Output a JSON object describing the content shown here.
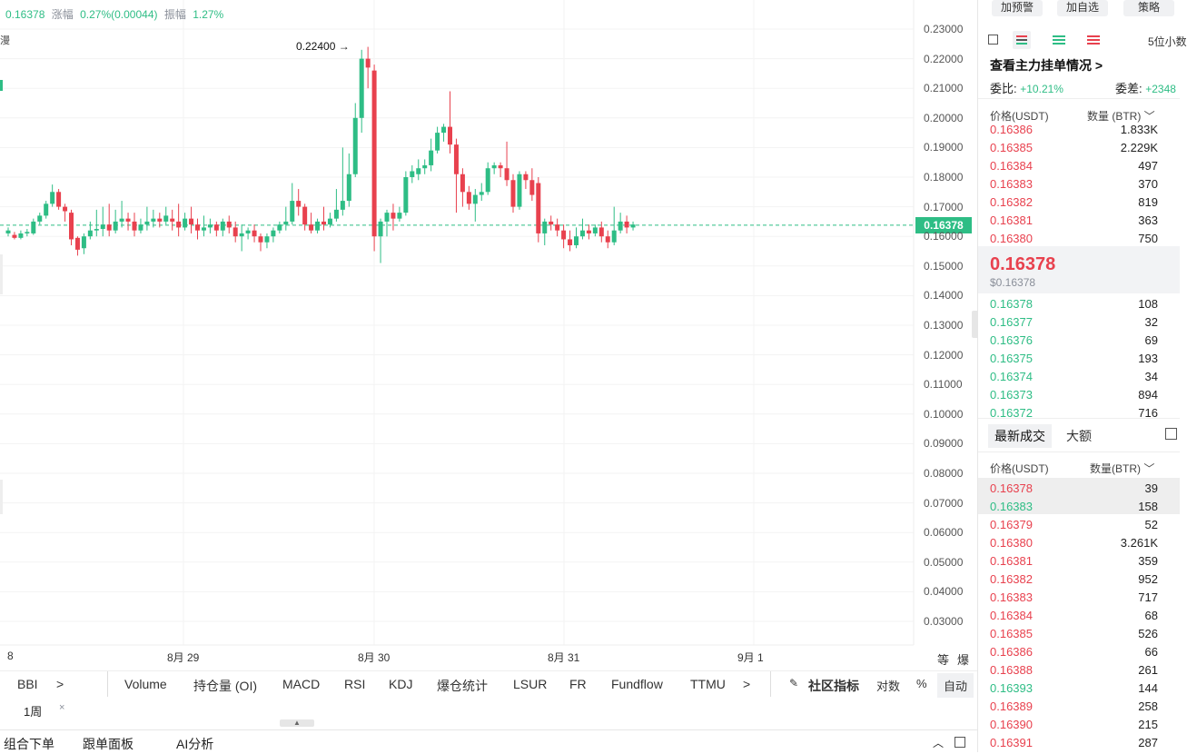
{
  "info": {
    "price": "0.16378",
    "change_label": "涨幅",
    "change_value": "0.27%(0.00044)",
    "amp_label": "振幅",
    "amp_value": "1.27%"
  },
  "left_marks": {
    "a": "8",
    "b": "漫"
  },
  "chart": {
    "high_label": "0.22400",
    "current_tag": "0.16378",
    "y_ticks": [
      "0.23000",
      "0.22000",
      "0.21000",
      "0.20000",
      "0.19000",
      "0.18000",
      "0.17000",
      "0.16000",
      "0.15000",
      "0.14000",
      "0.13000",
      "0.12000",
      "0.11000",
      "0.10000",
      "0.09000",
      "0.08000",
      "0.07000",
      "0.06000",
      "0.05000",
      "0.04000",
      "0.03000"
    ],
    "x_ticks": [
      "8",
      "8月 29",
      "8月 30",
      "8月 31",
      "9月 1"
    ],
    "axis_icons": [
      "等",
      "爆"
    ]
  },
  "chart_data": {
    "type": "candlestick",
    "ylim": [
      0.025,
      0.235
    ],
    "candles": [
      [
        0.161,
        0.162,
        0.16,
        0.163
      ],
      [
        0.1605,
        0.1595,
        0.159,
        0.1615
      ],
      [
        0.1595,
        0.161,
        0.159,
        0.162
      ],
      [
        0.161,
        0.1615,
        0.16,
        0.1625
      ],
      [
        0.161,
        0.165,
        0.1605,
        0.166
      ],
      [
        0.165,
        0.167,
        0.164,
        0.168
      ],
      [
        0.167,
        0.171,
        0.166,
        0.172
      ],
      [
        0.171,
        0.175,
        0.17,
        0.1775
      ],
      [
        0.175,
        0.17,
        0.169,
        0.176
      ],
      [
        0.17,
        0.1685,
        0.165,
        0.171
      ],
      [
        0.168,
        0.159,
        0.157,
        0.169
      ],
      [
        0.1595,
        0.1555,
        0.1535,
        0.16
      ],
      [
        0.156,
        0.16,
        0.154,
        0.161
      ],
      [
        0.16,
        0.162,
        0.159,
        0.165
      ],
      [
        0.162,
        0.1625,
        0.16,
        0.169
      ],
      [
        0.1625,
        0.164,
        0.16,
        0.17
      ],
      [
        0.164,
        0.162,
        0.16,
        0.171
      ],
      [
        0.162,
        0.165,
        0.161,
        0.169
      ],
      [
        0.165,
        0.166,
        0.163,
        0.172
      ],
      [
        0.166,
        0.165,
        0.162,
        0.168
      ],
      [
        0.165,
        0.162,
        0.16,
        0.168
      ],
      [
        0.162,
        0.164,
        0.161,
        0.166
      ],
      [
        0.164,
        0.165,
        0.162,
        0.17
      ],
      [
        0.165,
        0.166,
        0.163,
        0.169
      ],
      [
        0.166,
        0.165,
        0.163,
        0.168
      ],
      [
        0.165,
        0.167,
        0.164,
        0.17
      ],
      [
        0.166,
        0.165,
        0.162,
        0.169
      ],
      [
        0.165,
        0.163,
        0.16,
        0.171
      ],
      [
        0.163,
        0.166,
        0.162,
        0.168
      ],
      [
        0.166,
        0.164,
        0.161,
        0.17
      ],
      [
        0.164,
        0.162,
        0.159,
        0.166
      ],
      [
        0.162,
        0.163,
        0.16,
        0.167
      ],
      [
        0.163,
        0.164,
        0.161,
        0.166
      ],
      [
        0.164,
        0.162,
        0.16,
        0.165
      ],
      [
        0.162,
        0.165,
        0.16,
        0.166
      ],
      [
        0.165,
        0.163,
        0.161,
        0.167
      ],
      [
        0.163,
        0.16,
        0.158,
        0.165
      ],
      [
        0.16,
        0.161,
        0.155,
        0.164
      ],
      [
        0.161,
        0.162,
        0.159,
        0.163
      ],
      [
        0.162,
        0.16,
        0.158,
        0.164
      ],
      [
        0.16,
        0.158,
        0.155,
        0.161
      ],
      [
        0.158,
        0.16,
        0.156,
        0.161
      ],
      [
        0.16,
        0.162,
        0.158,
        0.163
      ],
      [
        0.162,
        0.164,
        0.161,
        0.165
      ],
      [
        0.164,
        0.165,
        0.162,
        0.17
      ],
      [
        0.165,
        0.172,
        0.164,
        0.178
      ],
      [
        0.172,
        0.17,
        0.167,
        0.176
      ],
      [
        0.17,
        0.164,
        0.162,
        0.171
      ],
      [
        0.164,
        0.162,
        0.161,
        0.168
      ],
      [
        0.162,
        0.165,
        0.161,
        0.166
      ],
      [
        0.165,
        0.164,
        0.162,
        0.17
      ],
      [
        0.164,
        0.166,
        0.163,
        0.168
      ],
      [
        0.166,
        0.169,
        0.165,
        0.176
      ],
      [
        0.169,
        0.172,
        0.167,
        0.19
      ],
      [
        0.172,
        0.181,
        0.17,
        0.188
      ],
      [
        0.181,
        0.2,
        0.18,
        0.205
      ],
      [
        0.2,
        0.22,
        0.195,
        0.223
      ],
      [
        0.22,
        0.217,
        0.21,
        0.224
      ],
      [
        0.216,
        0.16,
        0.155,
        0.218
      ],
      [
        0.16,
        0.165,
        0.151,
        0.166
      ],
      [
        0.165,
        0.168,
        0.16,
        0.169
      ],
      [
        0.168,
        0.166,
        0.162,
        0.171
      ],
      [
        0.166,
        0.168,
        0.165,
        0.17
      ],
      [
        0.168,
        0.18,
        0.167,
        0.182
      ],
      [
        0.18,
        0.182,
        0.178,
        0.184
      ],
      [
        0.181,
        0.183,
        0.179,
        0.186
      ],
      [
        0.183,
        0.184,
        0.181,
        0.186
      ],
      [
        0.184,
        0.189,
        0.182,
        0.193
      ],
      [
        0.189,
        0.195,
        0.188,
        0.197
      ],
      [
        0.195,
        0.197,
        0.192,
        0.198
      ],
      [
        0.197,
        0.191,
        0.188,
        0.209
      ],
      [
        0.191,
        0.181,
        0.168,
        0.193
      ],
      [
        0.181,
        0.175,
        0.17,
        0.183
      ],
      [
        0.175,
        0.171,
        0.169,
        0.177
      ],
      [
        0.171,
        0.174,
        0.165,
        0.176
      ],
      [
        0.174,
        0.175,
        0.172,
        0.178
      ],
      [
        0.175,
        0.183,
        0.174,
        0.185
      ],
      [
        0.183,
        0.184,
        0.181,
        0.185
      ],
      [
        0.184,
        0.183,
        0.18,
        0.185
      ],
      [
        0.183,
        0.179,
        0.177,
        0.192
      ],
      [
        0.179,
        0.17,
        0.168,
        0.181
      ],
      [
        0.17,
        0.181,
        0.169,
        0.182
      ],
      [
        0.181,
        0.179,
        0.176,
        0.182
      ],
      [
        0.179,
        0.174,
        0.172,
        0.183
      ],
      [
        0.178,
        0.161,
        0.158,
        0.18
      ],
      [
        0.161,
        0.165,
        0.157,
        0.166
      ],
      [
        0.165,
        0.164,
        0.162,
        0.167
      ],
      [
        0.164,
        0.162,
        0.16,
        0.166
      ],
      [
        0.162,
        0.159,
        0.156,
        0.164
      ],
      [
        0.159,
        0.157,
        0.155,
        0.162
      ],
      [
        0.157,
        0.16,
        0.156,
        0.163
      ],
      [
        0.16,
        0.162,
        0.159,
        0.166
      ],
      [
        0.162,
        0.161,
        0.159,
        0.164
      ],
      [
        0.161,
        0.163,
        0.16,
        0.164
      ],
      [
        0.163,
        0.16,
        0.158,
        0.165
      ],
      [
        0.16,
        0.158,
        0.156,
        0.162
      ],
      [
        0.158,
        0.162,
        0.157,
        0.17
      ],
      [
        0.162,
        0.165,
        0.161,
        0.168
      ],
      [
        0.165,
        0.163,
        0.161,
        0.167
      ],
      [
        0.163,
        0.164,
        0.162,
        0.165
      ]
    ]
  },
  "indicators": [
    "BBI",
    ">",
    "Volume",
    "持仓量 (OI)",
    "MACD",
    "RSI",
    "KDJ",
    "爆仓统计",
    "LSUR",
    "FR",
    "Fundflow",
    "TTMU",
    ">",
    "社区指标",
    "对数",
    "%",
    "自动"
  ],
  "timeframe": "1周",
  "bottom": {
    "combo": "组合下单",
    "follow": "跟单面板",
    "ai": "AI分析"
  },
  "right": {
    "buttons": [
      "加预警",
      "加自选",
      "策略"
    ],
    "precision": "5位小数",
    "view_link": "查看主力挂单情况 >",
    "ratio_label": "委比:",
    "ratio_value": "+10.21%",
    "diff_label": "委差:",
    "diff_value": "+2348",
    "ob_header": {
      "price": "价格(USDT)",
      "qty": "数量 (BTR)"
    },
    "asks": [
      [
        "0.16386",
        "1.833K"
      ],
      [
        "0.16385",
        "2.229K"
      ],
      [
        "0.16384",
        "497"
      ],
      [
        "0.16383",
        "370"
      ],
      [
        "0.16382",
        "819"
      ],
      [
        "0.16381",
        "363"
      ],
      [
        "0.16380",
        "750"
      ]
    ],
    "mid_price": "0.16378",
    "mid_usd": "$0.16378",
    "bids": [
      [
        "0.16378",
        "108"
      ],
      [
        "0.16377",
        "32"
      ],
      [
        "0.16376",
        "69"
      ],
      [
        "0.16375",
        "193"
      ],
      [
        "0.16374",
        "34"
      ],
      [
        "0.16373",
        "894"
      ],
      [
        "0.16372",
        "716"
      ]
    ],
    "trades_tab": "最新成交",
    "large_tab": "大额",
    "tr_header": {
      "price": "价格(USDT)",
      "qty": "数量(BTR)"
    },
    "trades": [
      [
        "0.16378",
        "39",
        "red"
      ],
      [
        "0.16383",
        "158",
        "green"
      ],
      [
        "0.16379",
        "52",
        "red"
      ],
      [
        "0.16380",
        "3.261K",
        "red"
      ],
      [
        "0.16381",
        "359",
        "red"
      ],
      [
        "0.16382",
        "952",
        "red"
      ],
      [
        "0.16383",
        "717",
        "red"
      ],
      [
        "0.16384",
        "68",
        "red"
      ],
      [
        "0.16385",
        "526",
        "red"
      ],
      [
        "0.16386",
        "66",
        "red"
      ],
      [
        "0.16388",
        "261",
        "red"
      ],
      [
        "0.16393",
        "144",
        "green"
      ],
      [
        "0.16389",
        "258",
        "red"
      ],
      [
        "0.16390",
        "215",
        "red"
      ],
      [
        "0.16391",
        "287",
        "red"
      ]
    ],
    "colors": {
      "up": "#2ebd85",
      "down": "#e8414e"
    }
  }
}
